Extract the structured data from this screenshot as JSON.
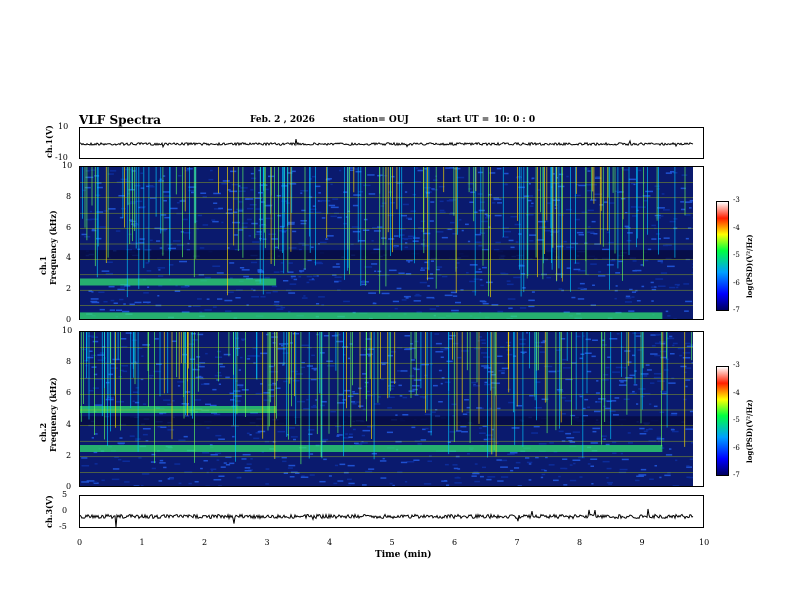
{
  "header": {
    "title": "VLF Spectra",
    "date": "Feb. 2 , 2026",
    "station": "station= OUJ",
    "start": "start UT =",
    "start_time": "10: 0 : 0"
  },
  "chart_data": [
    {
      "type": "line",
      "ylabel": "ch.1(V)",
      "ylim": [
        -10,
        10
      ],
      "y_ticks": [
        "10",
        "-10"
      ],
      "baseline": 0
    },
    {
      "type": "heatmap",
      "ylabel": "ch.1\nFrequency (kHz)",
      "ylabel_top": "ch.1",
      "ylabel_bottom": "Frequency (kHz)",
      "ylim": [
        0,
        10
      ],
      "y_ticks": [
        "0",
        "2",
        "4",
        "6",
        "8",
        "10"
      ],
      "bands_khz": [
        2.5,
        0.3
      ],
      "colorbar": {
        "label": "log(PSD)(V²/Hz)",
        "range": [
          -7,
          -3
        ],
        "ticks": [
          "-3",
          "-4",
          "-5",
          "-6",
          "-7"
        ]
      }
    },
    {
      "type": "heatmap",
      "ylabel_top": "ch.2",
      "ylabel_bottom": "Frequency (kHz)",
      "ylim": [
        0,
        10
      ],
      "y_ticks": [
        "0",
        "2",
        "4",
        "6",
        "8",
        "10"
      ],
      "bands_khz": [
        5.0,
        2.5
      ],
      "colorbar": {
        "label": "log(PSD)(V²/Hz)",
        "range": [
          -7,
          -3
        ],
        "ticks": [
          "-3",
          "-4",
          "-5",
          "-6",
          "-7"
        ]
      }
    },
    {
      "type": "line",
      "ylabel": "ch.3(V)",
      "ylim": [
        -5,
        5
      ],
      "y_ticks": [
        "5",
        "0",
        "-5"
      ],
      "baseline": -1.2
    }
  ],
  "xaxis": {
    "label": "Time (min)",
    "range": [
      0,
      10
    ],
    "ticks": [
      "0",
      "1",
      "2",
      "3",
      "4",
      "5",
      "6",
      "7",
      "8",
      "9",
      "10"
    ]
  },
  "colors": {
    "spectrum_bg": "#0a1a6e",
    "grid": "#c8e000"
  }
}
